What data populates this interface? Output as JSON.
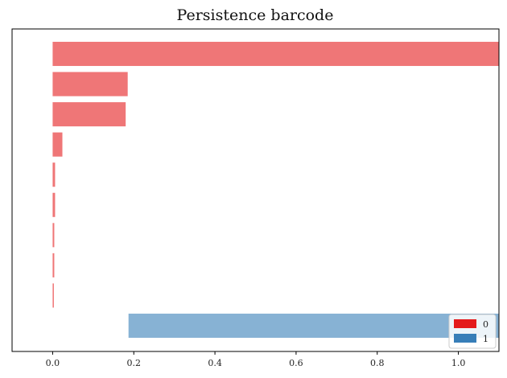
{
  "chart_data": {
    "type": "bar",
    "orientation": "horizontal",
    "title": "Persistence barcode",
    "xlabel": "",
    "ylabel": "",
    "xlim": [
      -0.1,
      1.1
    ],
    "x_ticks": [
      0.0,
      0.2,
      0.4,
      0.6,
      0.8,
      1.0
    ],
    "x_tick_labels": [
      "0.0",
      "0.2",
      "0.4",
      "0.6",
      "0.8",
      "1.0"
    ],
    "y_ticks": [],
    "grid": false,
    "legend": {
      "placement": "bottom-right",
      "entries": [
        {
          "label": "0",
          "color": "#e41a1c"
        },
        {
          "label": "1",
          "color": "#377eb8"
        }
      ]
    },
    "series": [
      {
        "name": "0",
        "color": "#e41a1c",
        "bars": [
          {
            "birth": 0.0,
            "death": 1.1
          },
          {
            "birth": 0.0,
            "death": 0.185
          },
          {
            "birth": 0.0,
            "death": 0.18
          },
          {
            "birth": 0.0,
            "death": 0.024
          },
          {
            "birth": 0.0,
            "death": 0.006
          },
          {
            "birth": 0.0,
            "death": 0.006
          },
          {
            "birth": 0.0,
            "death": 0.004
          },
          {
            "birth": 0.0,
            "death": 0.004
          },
          {
            "birth": 0.0,
            "death": 0.003
          }
        ]
      },
      {
        "name": "1",
        "color": "#377eb8",
        "bars": [
          {
            "birth": 0.187,
            "death": 1.1
          }
        ]
      }
    ]
  }
}
